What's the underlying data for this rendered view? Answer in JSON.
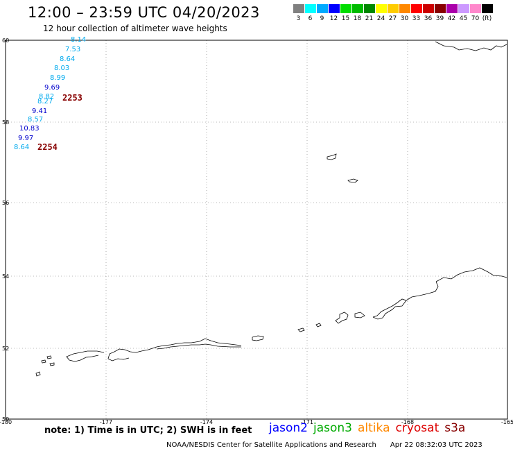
{
  "header": {
    "title": "12:00 – 23:59 UTC 04/20/2023",
    "subtitle": "12 hour collection of altimeter wave heights"
  },
  "color_scale": {
    "swatches": [
      {
        "label": "3",
        "color": "#808080"
      },
      {
        "label": "6",
        "color": "#00ffff"
      },
      {
        "label": "9",
        "color": "#00aaff"
      },
      {
        "label": "12",
        "color": "#0000ff"
      },
      {
        "label": "15",
        "color": "#00dd00"
      },
      {
        "label": "18",
        "color": "#00bb00"
      },
      {
        "label": "21",
        "color": "#008800"
      },
      {
        "label": "24",
        "color": "#ffff00"
      },
      {
        "label": "27",
        "color": "#ffcc00"
      },
      {
        "label": "30",
        "color": "#ff8800"
      },
      {
        "label": "33",
        "color": "#ff0000"
      },
      {
        "label": "36",
        "color": "#cc0000"
      },
      {
        "label": "39",
        "color": "#880000"
      },
      {
        "label": "42",
        "color": "#aa00aa"
      },
      {
        "label": "45",
        "color": "#cc99ff"
      },
      {
        "label": "70",
        "color": "#ff88cc"
      },
      {
        "label": "(ft)",
        "color": "#000000"
      }
    ]
  },
  "map": {
    "lat_ticks": [
      "60",
      "58",
      "56",
      "54",
      "52",
      "50"
    ],
    "lon_ticks": [
      "-180",
      "-177",
      "-174",
      "-171",
      "-168",
      "-165"
    ],
    "wave_heights": [
      {
        "label": "8.14",
        "color": "#00aaee"
      },
      {
        "label": "7.53",
        "color": "#00aaee"
      },
      {
        "label": "8.64",
        "color": "#00aaee"
      },
      {
        "label": "8.03",
        "color": "#00aaee"
      },
      {
        "label": "8.99",
        "color": "#00aaee"
      },
      {
        "label": "9.69",
        "color": "#0000cc"
      },
      {
        "label": "8.82",
        "color": "#00aaee"
      },
      {
        "label": "8.27",
        "color": "#00aaee"
      },
      {
        "label": "9.41",
        "color": "#0000cc"
      },
      {
        "label": "8.57",
        "color": "#00aaee"
      },
      {
        "label": "10.83",
        "color": "#0000cc"
      },
      {
        "label": "9.97",
        "color": "#0000cc"
      },
      {
        "label": "8.64",
        "color": "#00aaee"
      }
    ],
    "pass_times": [
      {
        "label": "2253",
        "color": "#880000"
      },
      {
        "label": "2254",
        "color": "#880000"
      }
    ]
  },
  "footer": {
    "note": "note:  1) Time is in UTC;  2) SWH is in feet",
    "missions": [
      {
        "name": "jason2",
        "color": "#0000ff"
      },
      {
        "name": "jason3",
        "color": "#00aa00"
      },
      {
        "name": "altika",
        "color": "#ff8800"
      },
      {
        "name": "cryosat",
        "color": "#dd0000"
      },
      {
        "name": "s3a",
        "color": "#880000"
      }
    ],
    "credit": "NOAA/NESDIS Center for Satellite Applications and Research",
    "timestamp": "Apr 22 08:32:03 UTC 2023"
  }
}
